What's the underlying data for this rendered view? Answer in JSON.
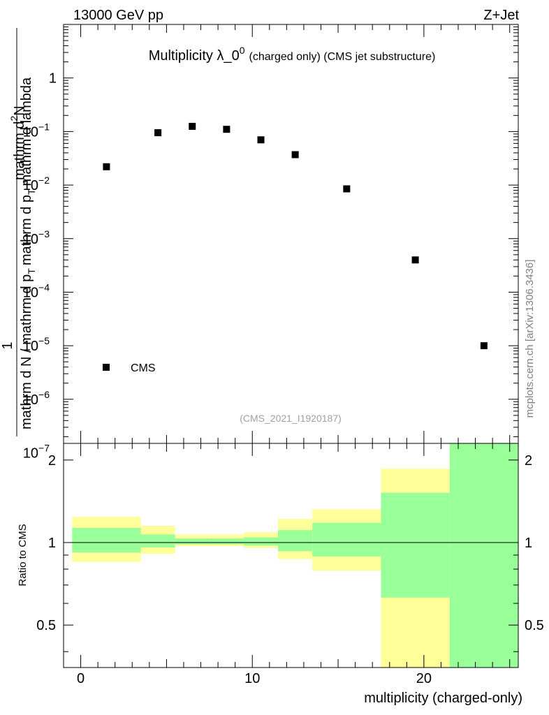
{
  "header": {
    "energy": "13000 GeV pp",
    "process": "Z+Jet"
  },
  "chart_data": [
    {
      "type": "scatter",
      "title_main": "Multiplicity λ_0",
      "title_sup": "0",
      "title_suffix": "(charged only) (CMS jet substructure)",
      "ylabel_parts": [
        "1",
        "mathrm d N / mathrm d p",
        "T",
        "mathrm d p",
        "T",
        "mathrm d lambda",
        "mathrm d",
        "2",
        "N"
      ],
      "yscale": "log",
      "ylim": [
        1.5e-07,
        10
      ],
      "xlim": [
        -1,
        25.5
      ],
      "y_tick_labels": [
        {
          "value": 1,
          "label": "1",
          "sup": ""
        },
        {
          "value": 0.1,
          "label": "10",
          "sup": "−1"
        },
        {
          "value": 0.01,
          "label": "10",
          "sup": "−2"
        },
        {
          "value": 0.001,
          "label": "10",
          "sup": "−3"
        },
        {
          "value": 0.0001,
          "label": "10",
          "sup": "−4"
        },
        {
          "value": 1e-05,
          "label": "10",
          "sup": "−5"
        },
        {
          "value": 1e-06,
          "label": "10",
          "sup": "−6"
        },
        {
          "value": 1e-07,
          "label": "10",
          "sup": "−7"
        }
      ],
      "series": [
        {
          "name": "CMS",
          "x": [
            1.5,
            4.5,
            6.5,
            8.5,
            10.5,
            12.5,
            15.5,
            19.5,
            23.5
          ],
          "y": [
            0.022,
            0.095,
            0.125,
            0.11,
            0.07,
            0.037,
            0.0085,
            0.0004,
            1e-05
          ]
        }
      ],
      "legend": {
        "label": "CMS",
        "placement": "bottom-left"
      },
      "annotation": "(CMS_2021_I1920187)",
      "side_label": "mcplots.cern.ch [arXiv:1306.3436]"
    },
    {
      "type": "area",
      "ylabel": "Ratio to CMS",
      "xlabel": "multiplicity (charged-only)",
      "xlim": [
        -1,
        25.5
      ],
      "ylim": [
        0.35,
        2.3
      ],
      "x_tick_labels": [
        "0",
        "10",
        "20"
      ],
      "x_tick_values": [
        0,
        10,
        20
      ],
      "y_tick_labels": [
        "0.5",
        "1",
        "2"
      ],
      "y_tick_values": [
        0.5,
        1,
        2
      ],
      "reference_line": 1,
      "bands": [
        {
          "x_low": -0.5,
          "x_high": 3.5,
          "inner": [
            0.92,
            1.13
          ],
          "outer": [
            0.85,
            1.24
          ]
        },
        {
          "x_low": 3.5,
          "x_high": 5.5,
          "inner": [
            0.96,
            1.07
          ],
          "outer": [
            0.91,
            1.15
          ]
        },
        {
          "x_low": 5.5,
          "x_high": 7.5,
          "inner": [
            0.985,
            1.035
          ],
          "outer": [
            0.97,
            1.07
          ]
        },
        {
          "x_low": 7.5,
          "x_high": 9.5,
          "inner": [
            0.985,
            1.035
          ],
          "outer": [
            0.97,
            1.07
          ]
        },
        {
          "x_low": 9.5,
          "x_high": 11.5,
          "inner": [
            0.975,
            1.045
          ],
          "outer": [
            0.955,
            1.09
          ]
        },
        {
          "x_low": 11.5,
          "x_high": 13.5,
          "inner": [
            0.93,
            1.11
          ],
          "outer": [
            0.87,
            1.22
          ]
        },
        {
          "x_low": 13.5,
          "x_high": 17.5,
          "inner": [
            0.89,
            1.18
          ],
          "outer": [
            0.79,
            1.32
          ]
        },
        {
          "x_low": 17.5,
          "x_high": 21.5,
          "inner": [
            0.63,
            1.52
          ],
          "outer": [
            0.35,
            1.86
          ]
        },
        {
          "x_low": 21.5,
          "x_high": 25.5,
          "inner": [
            0.35,
            2.3
          ],
          "outer": [
            0.35,
            2.3
          ]
        }
      ],
      "colors": {
        "inner": "#99ff99",
        "outer": "#ffff99",
        "line": "#000000"
      }
    }
  ]
}
